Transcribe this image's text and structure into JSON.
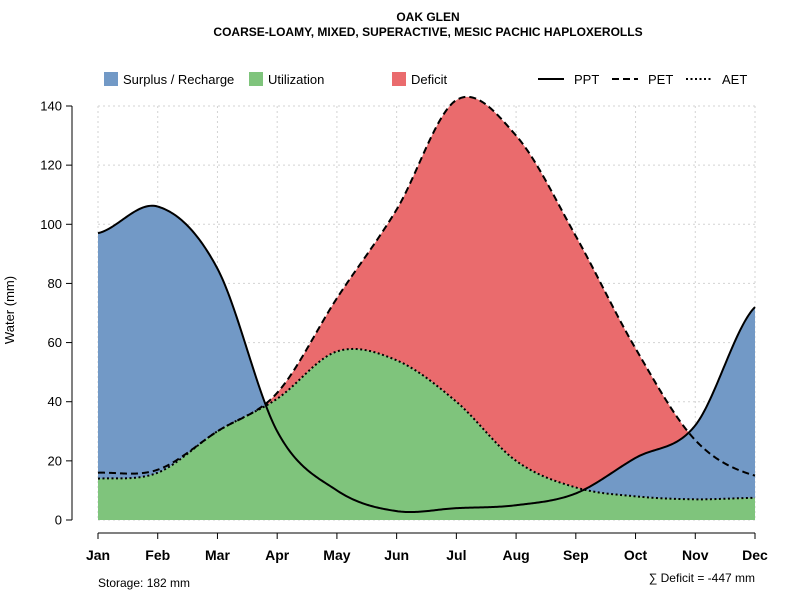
{
  "chart_data": {
    "type": "area",
    "title": "OAK GLEN",
    "subtitle": "COARSE-LOAMY, MIXED, SUPERACTIVE, MESIC PACHIC HAPLOXEROLLS",
    "xlabel": "",
    "ylabel": "Water (mm)",
    "ylim": [
      0,
      140
    ],
    "yticks": [
      "0",
      "20",
      "40",
      "60",
      "80",
      "100",
      "120",
      "140"
    ],
    "grid": true,
    "categories": [
      "Jan",
      "Feb",
      "Mar",
      "Apr",
      "May",
      "Jun",
      "Jul",
      "Aug",
      "Sep",
      "Oct",
      "Nov",
      "Dec"
    ],
    "series": [
      {
        "name": "PPT",
        "style": "solid",
        "values": [
          97,
          106,
          85,
          30,
          10,
          3,
          4,
          5,
          9,
          21,
          32,
          72
        ]
      },
      {
        "name": "PET",
        "style": "dashed",
        "values": [
          16,
          17,
          30,
          43,
          75,
          105,
          142,
          130,
          96,
          58,
          27,
          15
        ]
      },
      {
        "name": "AET",
        "style": "dotted",
        "values": [
          14,
          16,
          30,
          41,
          57,
          54,
          40,
          20,
          11,
          8,
          7,
          7.5
        ]
      }
    ],
    "legend": {
      "position": "top",
      "fills": [
        {
          "label": "Surplus / Recharge",
          "color": "#7299c6"
        },
        {
          "label": "Utilization",
          "color": "#7fc47c"
        },
        {
          "label": "Deficit",
          "color": "#ea6b6d"
        }
      ],
      "lines": [
        {
          "label": "PPT",
          "style": "solid"
        },
        {
          "label": "PET",
          "style": "dashed"
        },
        {
          "label": "AET",
          "style": "dotted"
        }
      ]
    },
    "footer": {
      "storage": "Storage: 182 mm",
      "deficit": "∑ Deficit = -447 mm"
    }
  }
}
